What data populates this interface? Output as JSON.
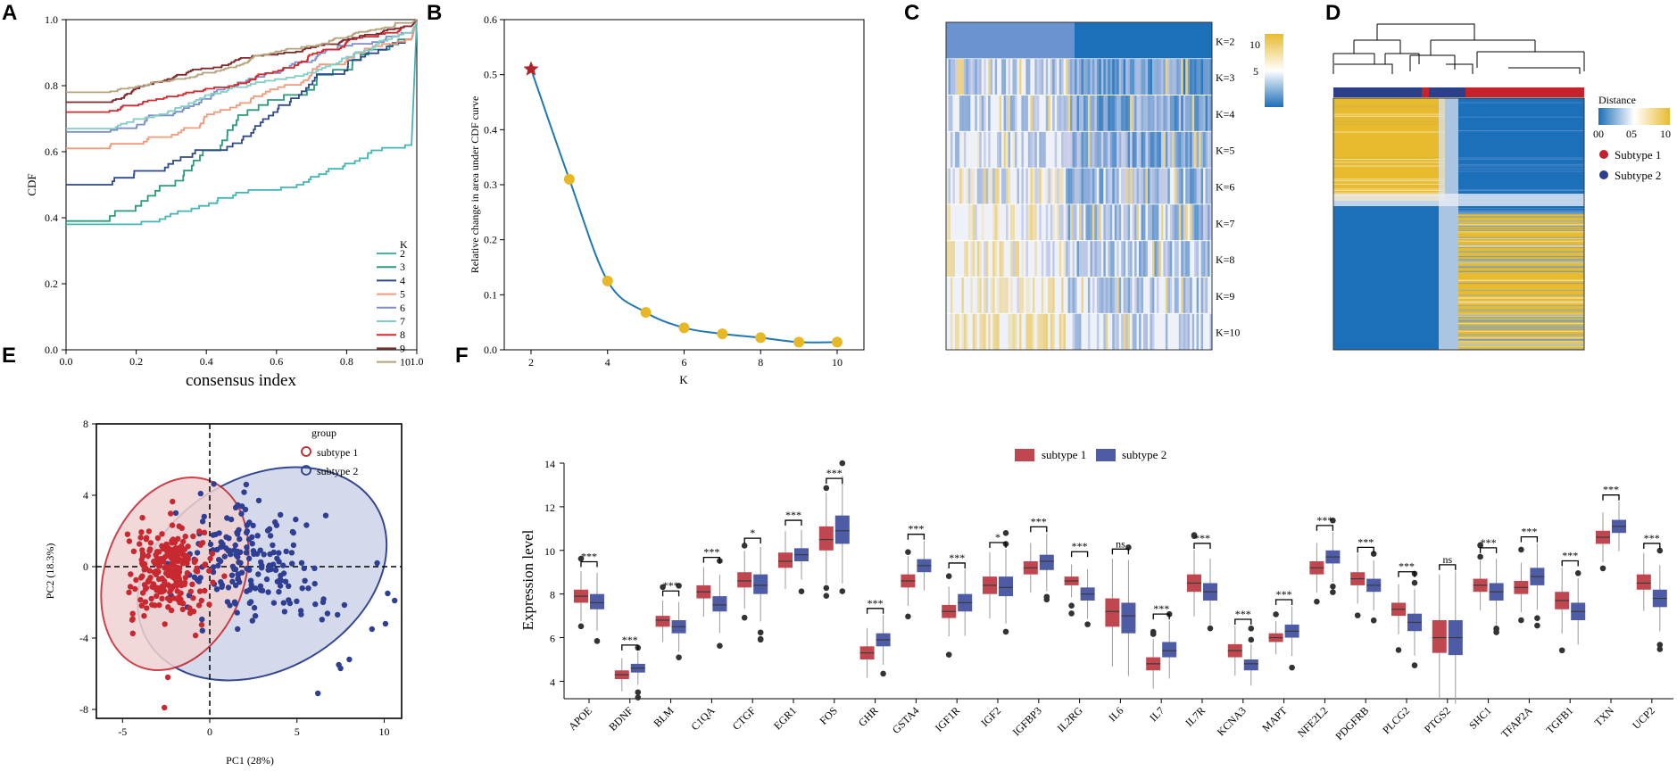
{
  "panels": {
    "a": "A",
    "b": "B",
    "c": "C",
    "d": "D",
    "e": "E",
    "f": "F"
  },
  "colors": {
    "teal": "#3ab1b4",
    "navy": "#2b3f8a",
    "red": "#c4222c",
    "gold": "#e8bb2f",
    "blue": "#1c6fb9",
    "subtype1": "#c0474f",
    "subtype2": "#4e5ba5"
  },
  "chart_data": [
    {
      "id": "A",
      "type": "line",
      "xlabel": "consensus index",
      "ylabel": "CDF",
      "xlim": [
        0,
        1
      ],
      "ylim": [
        0,
        1
      ],
      "xticks": [
        "0.0",
        "0.2",
        "0.4",
        "0.6",
        "0.8",
        "1.0"
      ],
      "yticks": [
        "0.0",
        "0.2",
        "0.4",
        "0.6",
        "0.8",
        "1.0"
      ],
      "legend_title": "K",
      "series": [
        {
          "name": "2",
          "color": "#43b6b4",
          "start": 0.38,
          "end": 0.62
        },
        {
          "name": "3",
          "color": "#2c9a7e",
          "start": 0.39,
          "end": 0.94
        },
        {
          "name": "4",
          "color": "#2e4a88",
          "start": 0.5,
          "end": 0.94
        },
        {
          "name": "5",
          "color": "#f29a7c",
          "start": 0.61,
          "end": 0.94
        },
        {
          "name": "6",
          "color": "#7d8fc5",
          "start": 0.66,
          "end": 0.96
        },
        {
          "name": "7",
          "color": "#82cec6",
          "start": 0.67,
          "end": 0.96
        },
        {
          "name": "8",
          "color": "#d42b30",
          "start": 0.72,
          "end": 0.98
        },
        {
          "name": "9",
          "color": "#7f2a2c",
          "start": 0.75,
          "end": 0.98
        },
        {
          "name": "10",
          "color": "#b3a37d",
          "start": 0.78,
          "end": 0.99
        }
      ]
    },
    {
      "id": "B",
      "type": "line",
      "xlabel": "K",
      "ylabel": "Relative change in area under CDF curve",
      "xlim": [
        1.3,
        10.7
      ],
      "ylim": [
        0,
        0.6
      ],
      "xticks": [
        "2",
        "4",
        "6",
        "8",
        "10"
      ],
      "yticks": [
        "0.0",
        "0.1",
        "0.2",
        "0.3",
        "0.4",
        "0.5",
        "0.6"
      ],
      "x": [
        2,
        3,
        4,
        5,
        6,
        7,
        8,
        9,
        10
      ],
      "y": [
        0.51,
        0.31,
        0.125,
        0.068,
        0.04,
        0.029,
        0.022,
        0.014,
        0.014
      ]
    },
    {
      "id": "C",
      "type": "heatmap",
      "row_labels": [
        "K=2",
        "K=3",
        "K=4",
        "K=5",
        "K=6",
        "K=7",
        "K=8",
        "K=9",
        "K=10"
      ],
      "colorbar_ticks": [
        "10",
        "5"
      ]
    },
    {
      "id": "D",
      "type": "heatmap",
      "legend_title": "Distance",
      "colorbar_ticks": [
        "00",
        "05",
        "10"
      ],
      "groups": [
        "Subtype 1",
        "Subtype 2"
      ]
    },
    {
      "id": "E",
      "type": "scatter",
      "xlabel": "PC1 (28%)",
      "ylabel": "PC2 (18.3%)",
      "xlim": [
        -6.5,
        11
      ],
      "ylim": [
        -8.5,
        8
      ],
      "xticks": [
        "-5",
        "0",
        "5",
        "10"
      ],
      "yticks": [
        "8",
        "4",
        "0",
        "-4",
        "-8"
      ],
      "legend_title": "group",
      "groups": [
        "subtype 1",
        "subtype 2"
      ]
    },
    {
      "id": "F",
      "type": "box",
      "ylabel": "Expression level",
      "ylim": [
        3.2,
        14
      ],
      "yticks": [
        "14",
        "12",
        "10",
        "8",
        "6",
        "4"
      ],
      "legend": [
        "subtype 1",
        "subtype 2"
      ],
      "categories": [
        "APOE",
        "BDNF",
        "BLM",
        "C1QA",
        "CTGF",
        "EGR1",
        "FOS",
        "GHR",
        "GSTA4",
        "IGF1R",
        "IGF2",
        "IGFBP3",
        "IL2RG",
        "IL6",
        "IL7",
        "IL7R",
        "KCNA3",
        "MAPT",
        "NFE2L2",
        "PDGFRB",
        "PLCG2",
        "PTGS2",
        "SHC1",
        "TFAP2A",
        "TGFB1",
        "TXN",
        "UCP2"
      ],
      "significance": [
        "***",
        "***",
        "***",
        "***",
        "*",
        "***",
        "***",
        "***",
        "***",
        "***",
        "*",
        "***",
        "***",
        "ns",
        "***",
        "***",
        "***",
        "***",
        "***",
        "***",
        "***",
        "ns",
        "***",
        "***",
        "***",
        "***",
        "***"
      ],
      "subtype1_median": [
        7.9,
        4.3,
        6.8,
        8.1,
        8.6,
        9.5,
        10.5,
        5.3,
        8.6,
        7.2,
        8.4,
        9.2,
        8.6,
        7.2,
        4.8,
        8.5,
        5.4,
        6.0,
        9.2,
        8.7,
        7.3,
        6.0,
        8.4,
        8.3,
        7.7,
        10.6,
        8.5
      ],
      "subtype2_median": [
        7.6,
        4.6,
        6.5,
        7.5,
        8.4,
        9.8,
        10.9,
        5.9,
        9.3,
        7.6,
        8.3,
        9.5,
        8.0,
        7.0,
        5.4,
        8.1,
        4.8,
        6.3,
        9.7,
        8.4,
        6.7,
        6.0,
        8.1,
        8.8,
        7.2,
        11.1,
        7.8
      ],
      "subtype1_q1": [
        7.6,
        4.1,
        6.5,
        7.8,
        8.3,
        9.2,
        10.0,
        5.0,
        8.3,
        6.9,
        8.0,
        8.9,
        8.4,
        6.5,
        4.5,
        8.1,
        5.1,
        5.8,
        8.9,
        8.4,
        7.0,
        5.3,
        8.1,
        8.0,
        7.3,
        10.3,
        8.2
      ],
      "subtype1_q3": [
        8.2,
        4.5,
        7.0,
        8.4,
        9.0,
        9.9,
        11.1,
        5.6,
        8.9,
        7.5,
        8.8,
        9.5,
        8.8,
        7.8,
        5.1,
        8.9,
        5.7,
        6.2,
        9.5,
        9.0,
        7.6,
        6.8,
        8.7,
        8.6,
        8.1,
        10.9,
        8.9
      ],
      "subtype2_q1": [
        7.3,
        4.4,
        6.2,
        7.2,
        8.0,
        9.5,
        10.3,
        5.6,
        9.0,
        7.2,
        7.9,
        9.1,
        7.7,
        6.2,
        5.1,
        7.7,
        4.5,
        6.0,
        9.4,
        8.1,
        6.3,
        5.2,
        7.7,
        8.4,
        6.8,
        10.8,
        7.4
      ],
      "subtype2_q3": [
        8.0,
        4.8,
        6.8,
        7.9,
        8.9,
        10.1,
        11.6,
        6.2,
        9.6,
        8.0,
        8.8,
        9.8,
        8.3,
        7.6,
        5.8,
        8.5,
        5.0,
        6.6,
        10.0,
        8.7,
        7.1,
        6.8,
        8.5,
        9.2,
        7.6,
        11.4,
        8.2
      ]
    }
  ]
}
